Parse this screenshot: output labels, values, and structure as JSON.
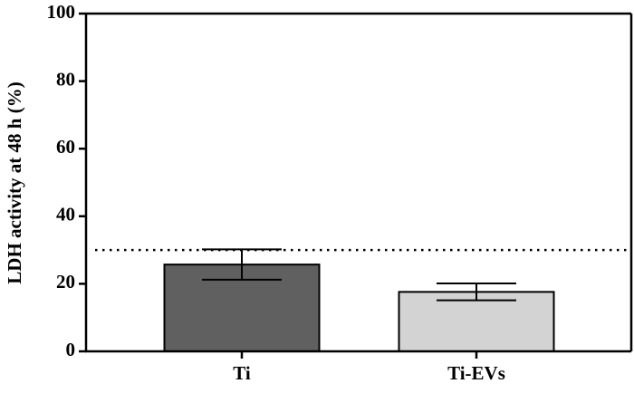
{
  "chart_data": {
    "type": "bar",
    "y_label": "LDH activity at 48 h (%)",
    "categories": [
      "Ti",
      "Ti-EVs"
    ],
    "values": [
      25.7,
      17.6
    ],
    "errors": [
      4.5,
      2.5
    ],
    "colors": [
      "#606060",
      "#d3d3d3"
    ],
    "reference_line": 30,
    "ylim": [
      0,
      100
    ],
    "yticks": [
      0,
      20,
      40,
      60,
      80,
      100
    ],
    "grid": false
  }
}
